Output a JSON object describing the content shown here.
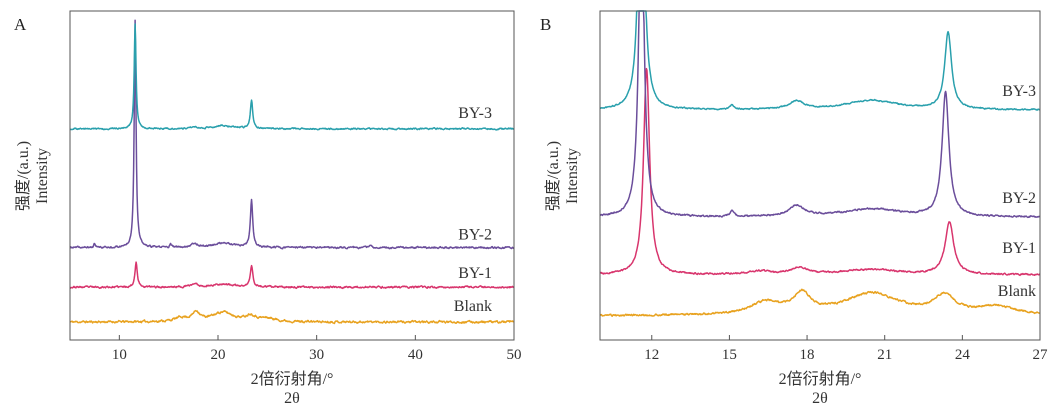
{
  "chart_data": [
    {
      "panel_label": "A",
      "type": "line",
      "xlabel": "2倍衍射角/°",
      "xlabel_sub": "2θ",
      "ylabel": "强度/(a.u.)",
      "ylabel_sub": "Intensity",
      "xlim": [
        5,
        50
      ],
      "xticks": [
        10,
        20,
        30,
        40,
        50
      ],
      "y_ticks_shown": false,
      "series": [
        {
          "name": "Blank",
          "color": "#e8a21f",
          "baseline": 0.0,
          "noise": 0.006,
          "seed": 11,
          "peaks": [
            {
              "x": 16.3,
              "h": 0.012,
              "w": 0.8
            },
            {
              "x": 17.8,
              "h": 0.028,
              "w": 0.45
            },
            {
              "x": 20.5,
              "h": 0.03,
              "w": 1.3
            },
            {
              "x": 23.3,
              "h": 0.018,
              "w": 0.6
            },
            {
              "x": 25.0,
              "h": 0.01,
              "w": 1.0
            }
          ]
        },
        {
          "name": "BY-1",
          "color": "#d8356d",
          "baseline": 0.11,
          "noise": 0.005,
          "seed": 23,
          "peaks": [
            {
              "x": 11.7,
              "h": 0.08,
              "w": 0.14
            },
            {
              "x": 17.6,
              "h": 0.01,
              "w": 0.4
            },
            {
              "x": 20.5,
              "h": 0.01,
              "w": 1.2
            },
            {
              "x": 23.4,
              "h": 0.065,
              "w": 0.16
            }
          ]
        },
        {
          "name": "BY-2",
          "color": "#6b4e9b",
          "baseline": 0.235,
          "noise": 0.005,
          "seed": 37,
          "peaks": [
            {
              "x": 7.5,
              "h": 0.012,
              "w": 0.1
            },
            {
              "x": 11.6,
              "h": 0.72,
              "w": 0.11
            },
            {
              "x": 15.2,
              "h": 0.008,
              "w": 0.12
            },
            {
              "x": 17.6,
              "h": 0.012,
              "w": 0.4
            },
            {
              "x": 20.5,
              "h": 0.014,
              "w": 1.2
            },
            {
              "x": 23.4,
              "h": 0.15,
              "w": 0.14
            },
            {
              "x": 35.4,
              "h": 0.006,
              "w": 0.15
            }
          ]
        },
        {
          "name": "BY-3",
          "color": "#2aa0ad",
          "baseline": 0.61,
          "noise": 0.004,
          "seed": 51,
          "peaks": [
            {
              "x": 11.6,
              "h": 0.33,
              "w": 0.11
            },
            {
              "x": 17.6,
              "h": 0.006,
              "w": 0.4
            },
            {
              "x": 20.5,
              "h": 0.01,
              "w": 1.2
            },
            {
              "x": 23.4,
              "h": 0.09,
              "w": 0.14
            }
          ]
        }
      ]
    },
    {
      "panel_label": "B",
      "type": "line",
      "xlabel": "2倍衍射角/°",
      "xlabel_sub": "2θ",
      "ylabel": "强度/(a.u.)",
      "ylabel_sub": "Intensity",
      "xlim": [
        10,
        27
      ],
      "xticks": [
        12,
        15,
        18,
        21,
        24,
        27
      ],
      "y_ticks_shown": false,
      "series": [
        {
          "name": "Blank",
          "color": "#e8a21f",
          "baseline": 0.0,
          "noise": 0.006,
          "seed": 61,
          "peaks": [
            {
              "x": 16.4,
              "h": 0.045,
              "w": 0.7
            },
            {
              "x": 17.8,
              "h": 0.07,
              "w": 0.4
            },
            {
              "x": 20.5,
              "h": 0.08,
              "w": 1.3
            },
            {
              "x": 23.3,
              "h": 0.065,
              "w": 0.5
            },
            {
              "x": 25.3,
              "h": 0.03,
              "w": 0.9
            }
          ]
        },
        {
          "name": "BY-1",
          "color": "#d8356d",
          "baseline": 0.15,
          "noise": 0.005,
          "seed": 73,
          "peaks": [
            {
              "x": 11.8,
              "h": 0.75,
              "w": 0.14
            },
            {
              "x": 16.2,
              "h": 0.012,
              "w": 0.5
            },
            {
              "x": 17.7,
              "h": 0.025,
              "w": 0.35
            },
            {
              "x": 20.5,
              "h": 0.02,
              "w": 1.2
            },
            {
              "x": 23.5,
              "h": 0.19,
              "w": 0.2
            }
          ]
        },
        {
          "name": "BY-2",
          "color": "#6b4e9b",
          "baseline": 0.36,
          "noise": 0.005,
          "seed": 89,
          "peaks": [
            {
              "x": 11.6,
              "h": 1.2,
              "w": 0.12
            },
            {
              "x": 15.1,
              "h": 0.02,
              "w": 0.09
            },
            {
              "x": 17.6,
              "h": 0.04,
              "w": 0.35
            },
            {
              "x": 20.5,
              "h": 0.03,
              "w": 1.3
            },
            {
              "x": 23.35,
              "h": 0.45,
              "w": 0.16
            }
          ]
        },
        {
          "name": "BY-3",
          "color": "#2aa0ad",
          "baseline": 0.75,
          "noise": 0.004,
          "seed": 97,
          "peaks": [
            {
              "x": 11.6,
              "h": 1.2,
              "w": 0.12
            },
            {
              "x": 15.1,
              "h": 0.015,
              "w": 0.09
            },
            {
              "x": 17.6,
              "h": 0.03,
              "w": 0.35
            },
            {
              "x": 20.5,
              "h": 0.035,
              "w": 1.2
            },
            {
              "x": 23.45,
              "h": 0.28,
              "w": 0.16
            }
          ]
        }
      ]
    }
  ]
}
